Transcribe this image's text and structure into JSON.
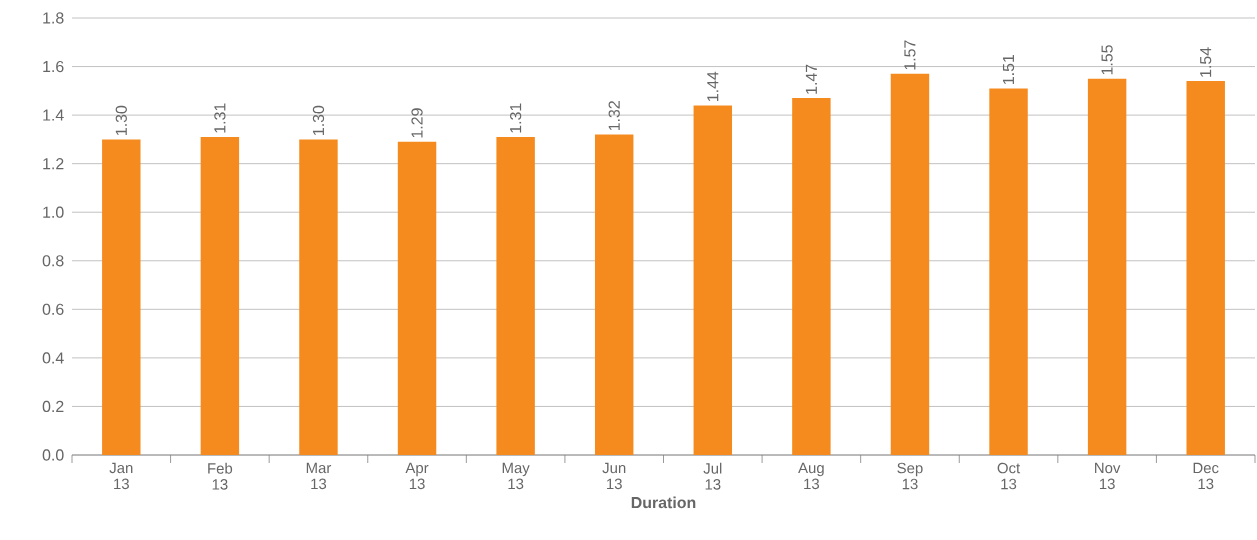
{
  "chart_data": {
    "type": "bar",
    "xlabel": "Duration",
    "categories": [
      "Jan 13",
      "Feb 13",
      "Mar 13",
      "Apr 13",
      "May 13",
      "Jun 13",
      "Jul 13",
      "Aug 13",
      "Sep 13",
      "Oct 13",
      "Nov 13",
      "Dec 13"
    ],
    "values": [
      1.3,
      1.31,
      1.3,
      1.29,
      1.31,
      1.32,
      1.44,
      1.47,
      1.57,
      1.51,
      1.55,
      1.54
    ],
    "value_labels": [
      "1.30",
      "1.31",
      "1.30",
      "1.29",
      "1.31",
      "1.32",
      "1.44",
      "1.47",
      "1.57",
      "1.51",
      "1.55",
      "1.54"
    ],
    "color": "#f58b1f",
    "ylim": [
      0,
      1.8
    ],
    "yticks": [
      {
        "value": 0,
        "label": "0.0"
      },
      {
        "value": 0.2,
        "label": "0.2"
      },
      {
        "value": 0.4,
        "label": "0.4"
      },
      {
        "value": 0.6,
        "label": "0.6"
      },
      {
        "value": 0.8,
        "label": "0.8"
      },
      {
        "value": 1.0,
        "label": "1.0"
      },
      {
        "value": 1.2,
        "label": "1.2"
      },
      {
        "value": 1.4,
        "label": "1.4"
      },
      {
        "value": 1.6,
        "label": "1.6"
      },
      {
        "value": 1.8,
        "label": "1.8"
      }
    ],
    "grid": "y"
  }
}
